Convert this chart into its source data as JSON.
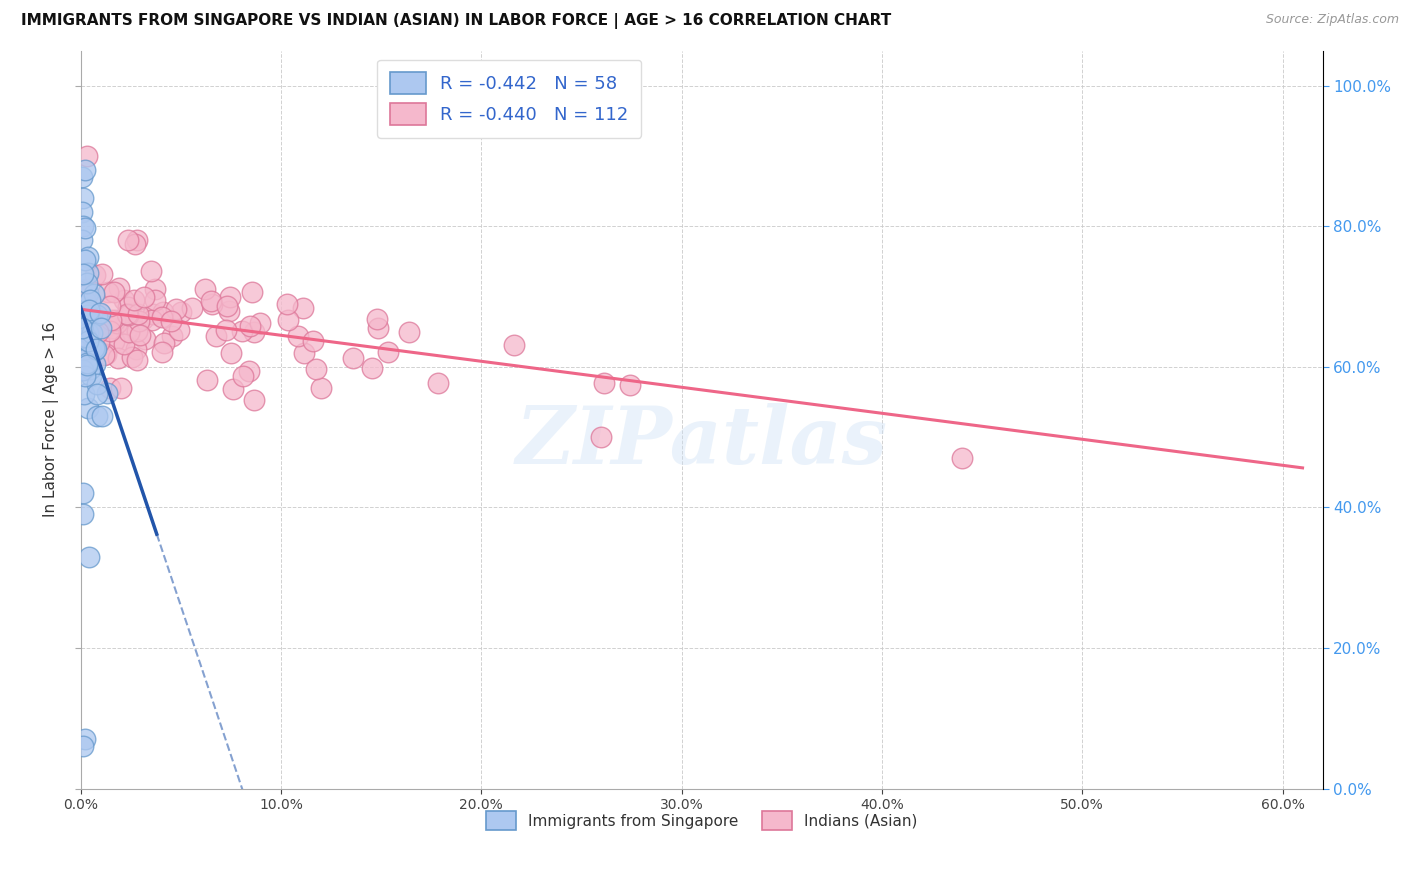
{
  "title": "IMMIGRANTS FROM SINGAPORE VS INDIAN (ASIAN) IN LABOR FORCE | AGE > 16 CORRELATION CHART",
  "source": "Source: ZipAtlas.com",
  "ylabel": "In Labor Force | Age > 16",
  "legend1_label": "R = -0.442   N = 58",
  "legend2_label": "R = -0.440   N = 112",
  "legend_bottom1": "Immigrants from Singapore",
  "legend_bottom2": "Indians (Asian)",
  "singapore_color": "#adc8f0",
  "singapore_edge": "#6699cc",
  "singapore_line_color": "#2255aa",
  "indian_color": "#f5b8cc",
  "indian_edge": "#dd7799",
  "indian_line_color": "#ee6688",
  "watermark": "ZIPatlas",
  "xlim": [
    0.0,
    0.62
  ],
  "ylim": [
    0.0,
    1.05
  ],
  "right_ytick_color": "#4499ee",
  "grid_color": "#cccccc",
  "sg_line_intercept": 0.685,
  "sg_line_slope": -8.5,
  "sg_line_solid_end": 0.038,
  "sg_line_dashed_end": 0.185,
  "in_line_intercept": 0.682,
  "in_line_slope": -0.37
}
